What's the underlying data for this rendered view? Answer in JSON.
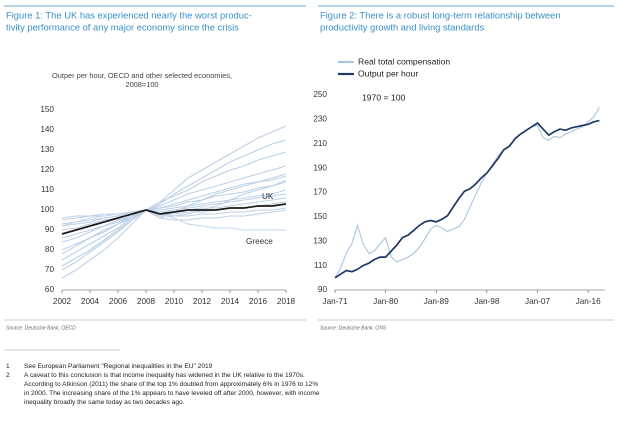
{
  "chart_data": [
    {
      "type": "line",
      "title": [
        "Figure 1: The UK has experienced nearly the worst produc-",
        "tivity performance of any major economy since the crisis"
      ],
      "subtitle": [
        "Outper per hour, OECD and other selected economies,",
        "2008=100"
      ],
      "source": "Source: Deutsche Bank, OECD",
      "x": [
        2002,
        2003,
        2004,
        2005,
        2006,
        2007,
        2008,
        2009,
        2010,
        2011,
        2012,
        2013,
        2014,
        2015,
        2016,
        2017,
        2018
      ],
      "xlim": [
        2002,
        2018
      ],
      "xticks": [
        2002,
        2004,
        2006,
        2008,
        2010,
        2012,
        2014,
        2016,
        2018
      ],
      "ylim": [
        60,
        150
      ],
      "yticks": [
        60,
        70,
        80,
        90,
        100,
        110,
        120,
        130,
        140,
        150
      ],
      "series": [
        {
          "color": "#bcd0e8",
          "values": [
            66,
            70,
            75,
            80,
            86,
            93,
            100,
            104,
            110,
            116,
            120,
            124,
            128,
            132,
            136,
            139,
            142
          ]
        },
        {
          "color": "#bcd0e8",
          "values": [
            72,
            76,
            80,
            85,
            90,
            95,
            100,
            103,
            108,
            112,
            116,
            120,
            124,
            127,
            130,
            133,
            135
          ]
        },
        {
          "color": "#bcd0e8",
          "values": [
            75,
            79,
            83,
            87,
            91,
            96,
            100,
            104,
            107,
            110,
            114,
            117,
            120,
            122,
            125,
            127,
            129
          ]
        },
        {
          "color": "#bcd0e8",
          "values": [
            80,
            83,
            86,
            89,
            93,
            97,
            100,
            102,
            105,
            108,
            110,
            112,
            114,
            116,
            118,
            120,
            122
          ]
        },
        {
          "color": "#bcd0e8",
          "values": [
            84,
            86,
            89,
            92,
            94,
            97,
            100,
            101,
            103,
            105,
            107,
            109,
            111,
            113,
            114,
            116,
            118
          ]
        },
        {
          "color": "#bcd0e8",
          "values": [
            86,
            88,
            90,
            92,
            95,
            97,
            100,
            101,
            102,
            104,
            105,
            107,
            108,
            109,
            111,
            112,
            114
          ]
        },
        {
          "color": "#bcd0e8",
          "values": [
            88,
            90,
            92,
            94,
            96,
            98,
            100,
            100,
            101,
            102,
            103,
            104,
            105,
            106,
            107,
            108,
            110
          ]
        },
        {
          "color": "#bcd0e8",
          "values": [
            90,
            91,
            93,
            95,
            96,
            98,
            100,
            99,
            100,
            101,
            102,
            103,
            104,
            105,
            106,
            107,
            108
          ]
        },
        {
          "color": "#bcd0e8",
          "values": [
            92,
            93,
            94,
            96,
            97,
            99,
            100,
            99,
            99,
            100,
            101,
            101,
            102,
            103,
            104,
            105,
            106
          ]
        },
        {
          "color": "#bcd0e8",
          "values": [
            93,
            94,
            95,
            96,
            97,
            99,
            100,
            98,
            98,
            99,
            99,
            100,
            101,
            101,
            102,
            103,
            104
          ]
        },
        {
          "color": "#bcd0e8",
          "values": [
            95,
            96,
            97,
            97,
            98,
            99,
            100,
            97,
            97,
            97,
            98,
            98,
            99,
            99,
            100,
            100,
            101
          ]
        },
        {
          "color": "#bcd0e8",
          "values": [
            78,
            82,
            86,
            90,
            93,
            96,
            100,
            98,
            97,
            98,
            100,
            102,
            105,
            108,
            110,
            112,
            115
          ]
        },
        {
          "color": "#bcd0e8",
          "values": [
            70,
            74,
            79,
            84,
            89,
            95,
            100,
            96,
            99,
            102,
            105,
            108,
            110,
            112,
            114,
            115,
            117
          ]
        },
        {
          "color": "#bcd0e8",
          "values": [
            96,
            97,
            97,
            98,
            98,
            99,
            100,
            96,
            95,
            95,
            96,
            96,
            97,
            97,
            98,
            99,
            100
          ]
        },
        {
          "name": "Greece",
          "color": "#c6d6ea",
          "values": [
            92,
            94,
            96,
            97,
            98,
            99,
            100,
            98,
            96,
            93,
            92,
            91,
            91,
            90,
            90,
            90,
            90
          ]
        },
        {
          "name": "UK",
          "color": "#1a1a1a",
          "values": [
            88,
            90,
            92,
            94,
            96,
            98,
            100,
            98,
            99,
            100,
            100,
            100,
            101,
            101,
            102,
            102,
            103
          ]
        }
      ]
    },
    {
      "type": "line",
      "title": [
        "Figure 2: There is a robust long-term relationship between",
        "productivity growth and living standards"
      ],
      "annotation": "1970 = 100",
      "source": "Source: Deutsche Bank, ONS",
      "x": [
        1971,
        1972,
        1973,
        1974,
        1975,
        1976,
        1977,
        1978,
        1979,
        1980,
        1981,
        1982,
        1983,
        1984,
        1985,
        1986,
        1987,
        1988,
        1989,
        1990,
        1991,
        1992,
        1993,
        1994,
        1995,
        1996,
        1997,
        1998,
        1999,
        2000,
        2001,
        2002,
        2003,
        2004,
        2005,
        2006,
        2007,
        2008,
        2009,
        2010,
        2011,
        2012,
        2013,
        2014,
        2015,
        2016,
        2017,
        2018
      ],
      "xlim": [
        1971,
        2019
      ],
      "xticks": [
        {
          "value": 1971,
          "label": "Jan-71"
        },
        {
          "value": 1980,
          "label": "Jan-80"
        },
        {
          "value": 1989,
          "label": "Jan-89"
        },
        {
          "value": 1998,
          "label": "Jan-98"
        },
        {
          "value": 2007,
          "label": "Jan-07"
        },
        {
          "value": 2016,
          "label": "Jan-16"
        }
      ],
      "ylim": [
        90,
        250
      ],
      "yticks": [
        90,
        110,
        130,
        150,
        170,
        190,
        210,
        230,
        250
      ],
      "legend": "top-left",
      "series": [
        {
          "name": "Real total compensation",
          "color": "#a9c4e2",
          "values": [
            100,
            108,
            120,
            128,
            143,
            128,
            120,
            122,
            128,
            133,
            117,
            113,
            115,
            117,
            120,
            125,
            132,
            140,
            143,
            141,
            138,
            140,
            142,
            148,
            158,
            168,
            178,
            186,
            193,
            200,
            205,
            208,
            215,
            218,
            221,
            224,
            225,
            215,
            213,
            216,
            215,
            218,
            220,
            222,
            224,
            228,
            232,
            240
          ]
        },
        {
          "name": "Output per hour",
          "color": "#1f3864",
          "values": [
            100,
            103,
            106,
            105,
            107,
            110,
            112,
            115,
            117,
            117,
            122,
            127,
            133,
            135,
            139,
            143,
            146,
            147,
            146,
            148,
            151,
            158,
            165,
            171,
            173,
            177,
            182,
            186,
            192,
            198,
            205,
            208,
            214,
            218,
            221,
            224,
            227,
            222,
            217,
            220,
            222,
            221,
            223,
            224,
            225,
            226,
            228,
            229
          ]
        }
      ]
    }
  ],
  "footnotes": [
    {
      "number": "1",
      "lines": [
        "See European Parliament \"Regional inequalities in the EU\" 2019"
      ]
    },
    {
      "number": "2",
      "lines": [
        "A caveat to this conclusion is that income inequality has widened in the UK relative to the 1970s.",
        "According to Atkinson (2011) the share of the top 1% doubled from approximately 6% in 1976 to 12%",
        "in 2000. The increasing share of the 1% appears to have leveled off after 2000, however, with income",
        "inequality broadly the same today as two decades ago."
      ]
    }
  ]
}
